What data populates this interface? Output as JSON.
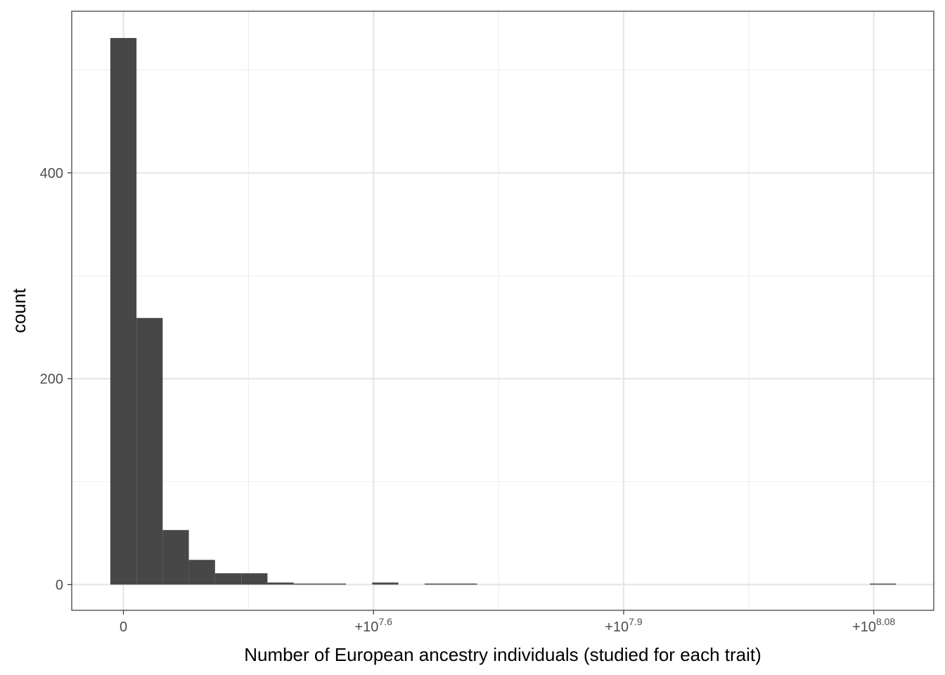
{
  "chart_data": {
    "type": "bar",
    "subtype": "histogram",
    "title": "",
    "xlabel": "Number of European ancestry individuals (studied for each trait)",
    "ylabel": "count",
    "ylim": [
      -25,
      557
    ],
    "y_ticks": [
      0,
      200,
      400
    ],
    "y_tick_labels": [
      "0",
      "200",
      "400"
    ],
    "x_ticks": [
      {
        "value": 0,
        "label_base": "0",
        "label_exp": ""
      },
      {
        "value": 3,
        "label_base": "+10",
        "label_exp": "7.6"
      },
      {
        "value": 6,
        "label_base": "+10",
        "label_exp": "7.9"
      },
      {
        "value": 9,
        "label_base": "+10",
        "label_exp": "8.08"
      }
    ],
    "xlim": [
      -0.62,
      9.72
    ],
    "bin_width": 0.3141,
    "bins": [
      {
        "x": 0.0,
        "count": 531
      },
      {
        "x": 0.314,
        "count": 259
      },
      {
        "x": 0.628,
        "count": 53
      },
      {
        "x": 0.942,
        "count": 24
      },
      {
        "x": 1.256,
        "count": 11
      },
      {
        "x": 1.571,
        "count": 11
      },
      {
        "x": 1.885,
        "count": 2
      },
      {
        "x": 2.199,
        "count": 1
      },
      {
        "x": 2.513,
        "count": 1
      },
      {
        "x": 2.827,
        "count": 0
      },
      {
        "x": 3.141,
        "count": 2
      },
      {
        "x": 3.455,
        "count": 0
      },
      {
        "x": 3.77,
        "count": 1
      },
      {
        "x": 4.084,
        "count": 1
      },
      {
        "x": 9.111,
        "count": 1
      }
    ],
    "bar_color": "#474747",
    "grid": true,
    "theme": "bw"
  }
}
